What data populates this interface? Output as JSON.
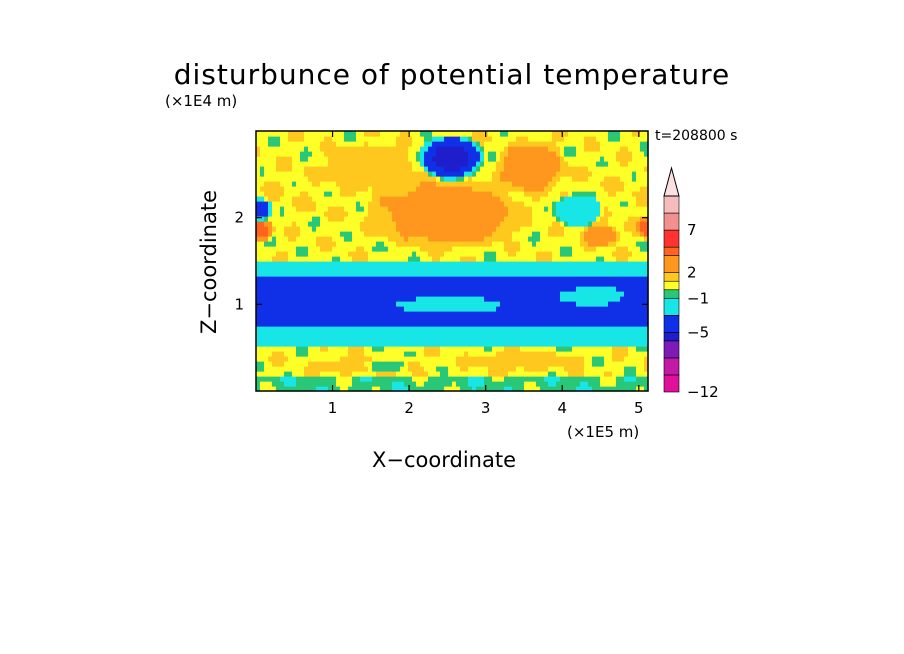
{
  "chart_data": {
    "type": "heatmap",
    "title": "disturbunce of potential temperature",
    "time_label": "t=208800 s",
    "xlabel": "X−coordinate",
    "ylabel": "Z−coordinate",
    "x_unit_label": "(×1E5 m)",
    "y_unit_label": "(×1E4 m)",
    "xlim": [
      0,
      5.12
    ],
    "ylim": [
      0,
      3.0
    ],
    "x_ticks": [
      {
        "value": 1,
        "label": "1"
      },
      {
        "value": 2,
        "label": "2"
      },
      {
        "value": 3,
        "label": "3"
      },
      {
        "value": 4,
        "label": "4"
      },
      {
        "value": 5,
        "label": "5"
      }
    ],
    "y_ticks": [
      {
        "value": 1,
        "label": "1"
      },
      {
        "value": 2,
        "label": "2"
      }
    ],
    "colorbar": {
      "bins": [
        {
          "min": -12,
          "max": -10,
          "color": "#e0109a"
        },
        {
          "min": -10,
          "max": -8,
          "color": "#c21aa6"
        },
        {
          "min": -8,
          "max": -6,
          "color": "#7d1ab8"
        },
        {
          "min": -6,
          "max": -5,
          "color": "#1e1ecc"
        },
        {
          "min": -5,
          "max": -3,
          "color": "#1030e8"
        },
        {
          "min": -3,
          "max": -1,
          "color": "#18e6e6"
        },
        {
          "min": -1,
          "max": 0,
          "color": "#28c878"
        },
        {
          "min": 0,
          "max": 1,
          "color": "#ffff28"
        },
        {
          "min": 1,
          "max": 2,
          "color": "#ffc81e"
        },
        {
          "min": 2,
          "max": 4,
          "color": "#ff961e"
        },
        {
          "min": 4,
          "max": 5,
          "color": "#ff641e"
        },
        {
          "min": 5,
          "max": 7,
          "color": "#ff3232"
        },
        {
          "min": 7,
          "max": 9,
          "color": "#f29090"
        },
        {
          "min": 9,
          "max": 11,
          "color": "#f5bcbc"
        }
      ],
      "overflow_color": "#fbe0e0",
      "tick_labels": [
        {
          "value": 7,
          "label": "7"
        },
        {
          "value": 2,
          "label": "2"
        },
        {
          "value": -1,
          "label": "−1"
        },
        {
          "value": -5,
          "label": "−5"
        },
        {
          "value": -12,
          "label": "−12"
        }
      ]
    },
    "field_features": [
      {
        "type": "band",
        "z_min": 0.0,
        "z_max": 0.15,
        "value": -0.5
      },
      {
        "type": "band",
        "z_min": 0.15,
        "z_max": 0.5,
        "value": 0.6
      },
      {
        "type": "band",
        "z_min": 0.5,
        "z_max": 0.75,
        "value": -2
      },
      {
        "type": "band",
        "z_min": 0.75,
        "z_max": 1.35,
        "value": -4
      },
      {
        "type": "band",
        "z_min": 1.35,
        "z_max": 1.5,
        "value": -2
      },
      {
        "type": "band",
        "z_min": 1.5,
        "z_max": 2.0,
        "value": 0.6
      },
      {
        "type": "band",
        "z_min": 2.0,
        "z_max": 2.6,
        "value": 0.8
      },
      {
        "type": "band",
        "z_min": 2.6,
        "z_max": 3.0,
        "value": 0.6
      },
      {
        "type": "blob",
        "x": 2.55,
        "z": 2.05,
        "rx": 0.55,
        "rz": 0.3,
        "value": 4.5
      },
      {
        "type": "blob",
        "x": 2.5,
        "z": 2.05,
        "rx": 1.1,
        "rz": 0.45,
        "value": 2.5
      },
      {
        "type": "blob",
        "x": 1.5,
        "z": 2.6,
        "rx": 0.7,
        "rz": 0.3,
        "value": 1.5
      },
      {
        "type": "blob",
        "x": 2.55,
        "z": 2.7,
        "rx": 0.45,
        "rz": 0.28,
        "value": -5.5
      },
      {
        "type": "blob",
        "x": 3.6,
        "z": 2.6,
        "rx": 0.5,
        "rz": 0.35,
        "value": 2.5
      },
      {
        "type": "blob",
        "x": 0.05,
        "z": 2.1,
        "rx": 0.18,
        "rz": 0.14,
        "value": -4
      },
      {
        "type": "blob",
        "x": 0.05,
        "z": 1.85,
        "rx": 0.2,
        "rz": 0.14,
        "value": 4.5
      },
      {
        "type": "blob",
        "x": 5.1,
        "z": 1.9,
        "rx": 0.15,
        "rz": 0.15,
        "value": 4.5
      },
      {
        "type": "blob",
        "x": 4.2,
        "z": 2.1,
        "rx": 0.35,
        "rz": 0.2,
        "value": -3
      },
      {
        "type": "blob",
        "x": 4.5,
        "z": 1.8,
        "rx": 0.3,
        "rz": 0.15,
        "value": 2.5
      },
      {
        "type": "blob",
        "x": 2.5,
        "z": 1.0,
        "rx": 0.8,
        "rz": 0.1,
        "value": -2
      },
      {
        "type": "blob",
        "x": 4.4,
        "z": 1.1,
        "rx": 0.5,
        "rz": 0.12,
        "value": -2
      },
      {
        "type": "blob",
        "x": 1.5,
        "z": 0.3,
        "rx": 0.8,
        "rz": 0.12,
        "value": 1.5
      },
      {
        "type": "blob",
        "x": 3.5,
        "z": 0.35,
        "rx": 0.9,
        "rz": 0.12,
        "value": 1.5
      },
      {
        "type": "blob",
        "x": 1.7,
        "z": 0.3,
        "rx": 0.3,
        "rz": 0.1,
        "value": -0.5
      }
    ]
  }
}
